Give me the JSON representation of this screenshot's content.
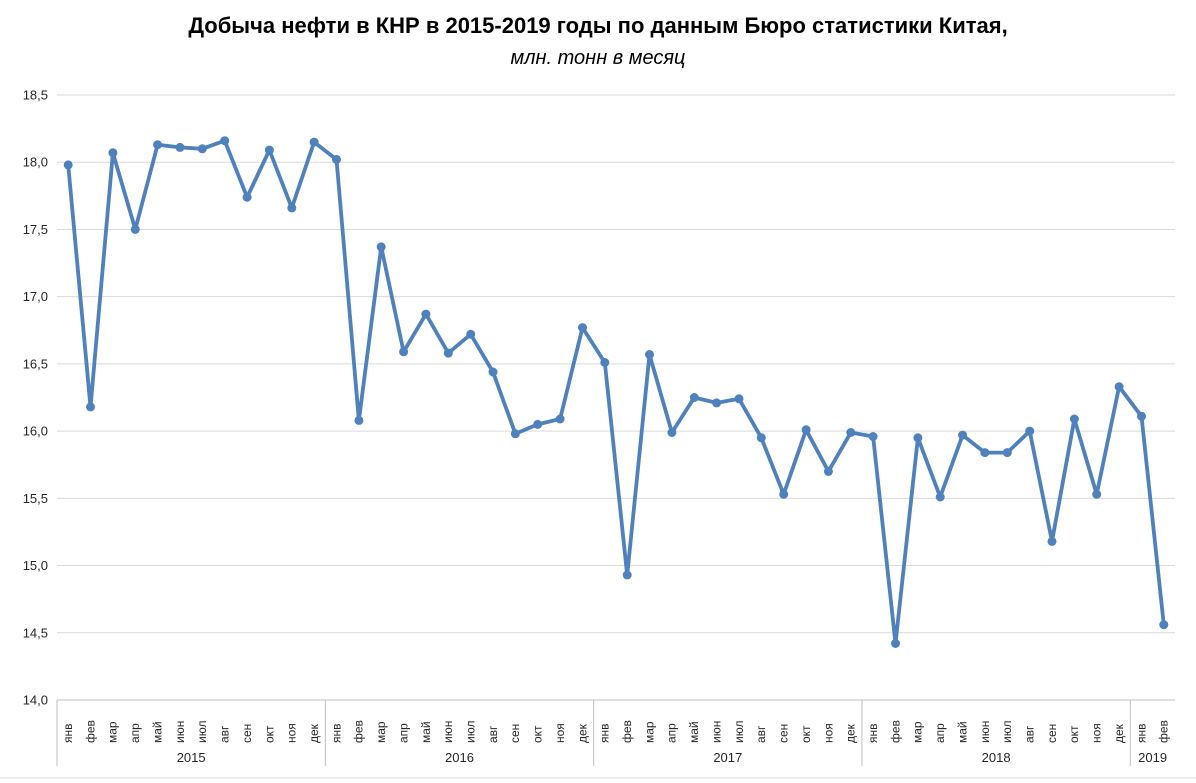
{
  "title": "Добыча нефти в КНР в 2015-2019 годы по данным Бюро статистики Китая,",
  "subtitle": "млн. тонн в месяц",
  "chart_data": {
    "type": "line",
    "title": "Добыча нефти в КНР в 2015-2019 годы по данным Бюро статистики Китая,",
    "subtitle": "млн. тонн в месяц",
    "ylabel": "",
    "xlabel": "",
    "ylim": [
      14.0,
      18.5
    ],
    "grid": true,
    "legend": "none",
    "y_ticks": [
      "18,5",
      "18,0",
      "17,5",
      "17,0",
      "16,5",
      "16,0",
      "15,5",
      "15,0",
      "14,5",
      "14,0"
    ],
    "month_labels": [
      "янв",
      "фев",
      "мар",
      "апр",
      "май",
      "июн",
      "июл",
      "авг",
      "сен",
      "окт",
      "ноя",
      "дек"
    ],
    "year_groups": [
      {
        "label": "2015",
        "months": 12
      },
      {
        "label": "2016",
        "months": 12
      },
      {
        "label": "2017",
        "months": 12
      },
      {
        "label": "2018",
        "months": 12
      },
      {
        "label": "2019",
        "months": 2
      }
    ],
    "series": [
      {
        "name": "Добыча нефти, млн. тонн в месяц",
        "values": [
          17.98,
          16.18,
          18.07,
          17.5,
          18.13,
          18.11,
          18.1,
          18.16,
          17.74,
          18.09,
          17.66,
          18.15,
          18.02,
          16.08,
          17.37,
          16.59,
          16.87,
          16.58,
          16.72,
          16.44,
          15.98,
          16.05,
          16.09,
          16.77,
          16.51,
          14.93,
          16.57,
          15.99,
          16.25,
          16.21,
          16.24,
          15.95,
          15.53,
          16.01,
          15.7,
          15.99,
          15.96,
          14.42,
          15.95,
          15.51,
          15.97,
          15.84,
          15.84,
          16.0,
          15.18,
          16.09,
          15.53,
          16.33,
          16.11,
          14.56
        ]
      }
    ],
    "colors": {
      "line": "#4F81BD",
      "gridline": "#D9D9D9",
      "axis": "#BFBFBF",
      "label_text": "#262626"
    }
  }
}
